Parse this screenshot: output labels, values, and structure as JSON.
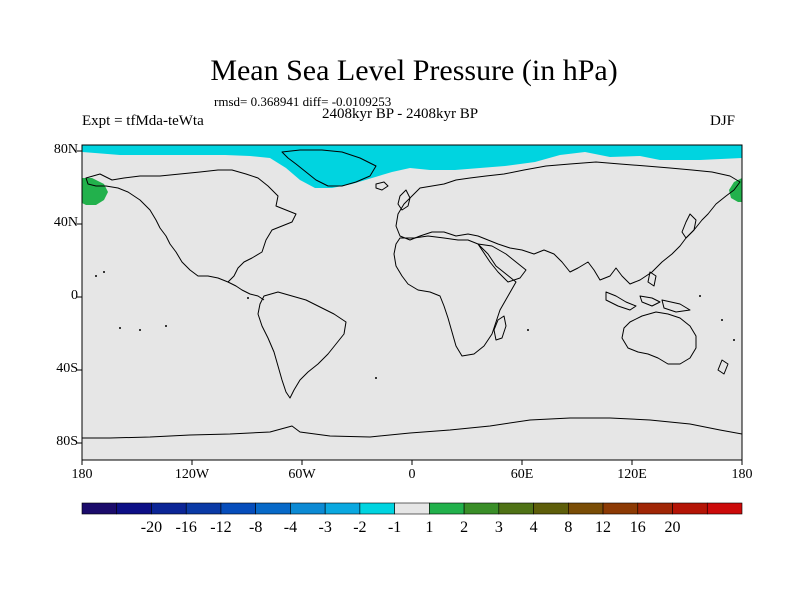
{
  "title": "Mean Sea Level Pressure (in hPa)",
  "stats": "rmsd= 0.368941 diff= -0.0109253",
  "period": "2408kyr BP - 2408kyr BP",
  "experiment": "Expt = tfMda-teWta",
  "season": "DJF",
  "map": {
    "lat_labels": [
      "80N",
      "40N",
      "0",
      "40S",
      "80S"
    ],
    "lon_labels": [
      "180",
      "120W",
      "60W",
      "0",
      "60E",
      "120E",
      "180"
    ],
    "background_color": "#e6e6e6",
    "anomaly_regions": [
      {
        "name": "arctic-negative-anomaly",
        "range": "-2 to -1",
        "color": "#00d4e0"
      },
      {
        "name": "bering-positive-anomaly-west",
        "range": "1 to 2",
        "color": "#22b14c"
      },
      {
        "name": "bering-positive-anomaly-east",
        "range": "1 to 2",
        "color": "#22b14c"
      }
    ]
  },
  "colorbar": {
    "colors": [
      "#1b0b6b",
      "#0d0f86",
      "#0b2596",
      "#0a3aa6",
      "#064dbb",
      "#0769c8",
      "#0c8ad4",
      "#0aa8e0",
      "#00d4e0",
      "#e6e6e6",
      "#22b14c",
      "#3a8e28",
      "#4f7216",
      "#5e5e0a",
      "#7a4d06",
      "#8c3a04",
      "#a02606",
      "#b41406",
      "#cc0a0a"
    ],
    "labels": [
      "-20",
      "-16",
      "-12",
      "-8",
      "-4",
      "-3",
      "-2",
      "-1",
      "1",
      "2",
      "3",
      "4",
      "8",
      "12",
      "16",
      "20"
    ]
  }
}
